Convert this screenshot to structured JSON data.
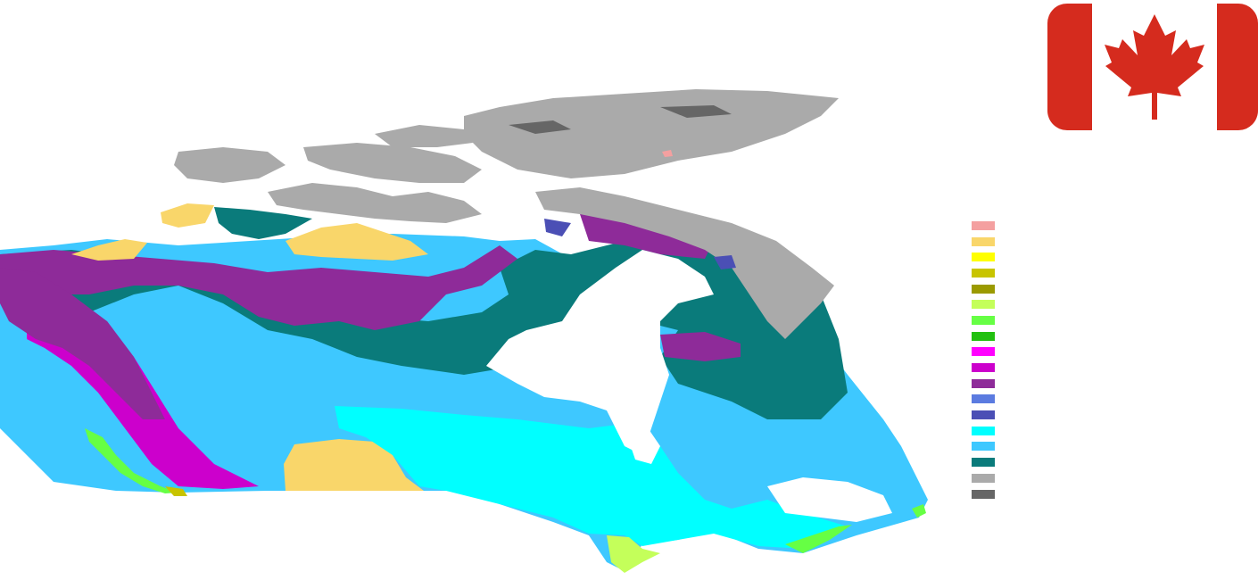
{
  "map": {
    "colors": {
      "pink": "#f4a0a0",
      "light_orange": "#f9d66a",
      "yellow": "#ffff00",
      "olive": "#c8c400",
      "dark_olive": "#9b9a00",
      "light_green": "#c4ff5a",
      "green": "#66ff44",
      "dark_green": "#22c010",
      "magenta": "#ff00ff",
      "dark_magenta": "#cc00cc",
      "purple": "#8e2b99",
      "periwinkle": "#5b7be0",
      "indigo": "#4b4fb5",
      "cyan": "#00ffff",
      "sky_blue": "#3ec8ff",
      "teal": "#0a7b7b",
      "light_gray": "#aaaaaa",
      "dark_gray": "#666666"
    }
  },
  "flag": {
    "red": "#d52b1e",
    "white": "#ffffff"
  },
  "legend": {
    "swatches": [
      "#f4a0a0",
      "#f9d66a",
      "#ffff00",
      "#c8c400",
      "#9b9a00",
      "#c4ff5a",
      "#66ff44",
      "#22c010",
      "#ff00ff",
      "#cc00cc",
      "#8e2b99",
      "#5b7be0",
      "#4b4fb5",
      "#00ffff",
      "#3ec8ff",
      "#0a7b7b",
      "#aaaaaa",
      "#666666"
    ]
  }
}
